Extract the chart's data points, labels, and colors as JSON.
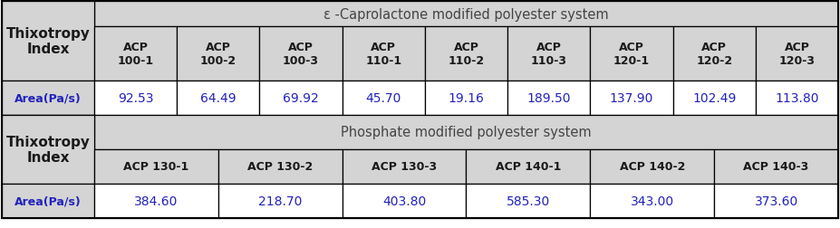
{
  "title1": "ε -Caprolactone modified polyester system",
  "title2": "Phosphate modified polyester system",
  "row_label": "Thixotropy\nIndex",
  "area_label": "Area(Pa/s)",
  "section1_cols": [
    "ACP\n100-1",
    "ACP\n100-2",
    "ACP\n100-3",
    "ACP\n110-1",
    "ACP\n110-2",
    "ACP\n110-3",
    "ACP\n120-1",
    "ACP\n120-2",
    "ACP\n120-3"
  ],
  "section1_vals": [
    "92.53",
    "64.49",
    "69.92",
    "45.70",
    "19.16",
    "189.50",
    "137.90",
    "102.49",
    "113.80"
  ],
  "section2_cols": [
    "ACP 130-1",
    "ACP 130-2",
    "ACP 130-3",
    "ACP 140-1",
    "ACP 140-2",
    "ACP 140-3"
  ],
  "section2_vals": [
    "384.60",
    "218.70",
    "403.80",
    "585.30",
    "343.00",
    "373.60"
  ],
  "header_bg": "#d4d4d4",
  "title_bg": "#d4d4d4",
  "col_bg": "#d4d4d4",
  "white_bg": "#ffffff",
  "border_color": "#000000",
  "text_color": "#1a1a1a",
  "area_text_color": "#2222bb",
  "title_color": "#444444",
  "label_fontsize": 11,
  "col_fontsize": 9,
  "val_fontsize": 10,
  "title_fontsize": 10.5
}
